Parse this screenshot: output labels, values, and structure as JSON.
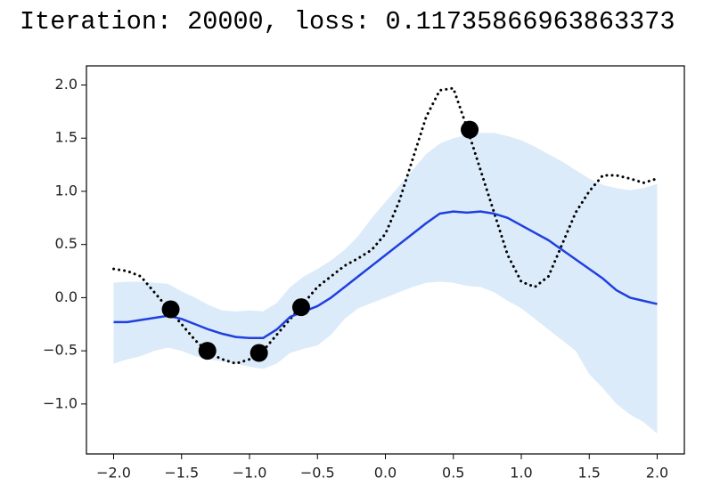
{
  "chart_data": {
    "type": "line",
    "title": "Iteration: 20000, loss: 0.11735866963863373",
    "x": [
      -2.0,
      -1.9,
      -1.8,
      -1.7,
      -1.6,
      -1.5,
      -1.4,
      -1.3,
      -1.2,
      -1.1,
      -1.0,
      -0.9,
      -0.8,
      -0.7,
      -0.6,
      -0.5,
      -0.4,
      -0.3,
      -0.2,
      -0.1,
      0.0,
      0.1,
      0.2,
      0.3,
      0.4,
      0.5,
      0.6,
      0.7,
      0.8,
      0.9,
      1.0,
      1.1,
      1.2,
      1.3,
      1.4,
      1.5,
      1.6,
      1.7,
      1.8,
      1.9,
      2.0
    ],
    "band": {
      "color": "#dcebf9",
      "upper": [
        0.14,
        0.15,
        0.15,
        0.14,
        0.13,
        0.06,
        0.0,
        -0.07,
        -0.12,
        -0.13,
        -0.12,
        -0.13,
        -0.05,
        0.1,
        0.2,
        0.27,
        0.35,
        0.45,
        0.58,
        0.75,
        0.9,
        1.05,
        1.2,
        1.35,
        1.45,
        1.5,
        1.53,
        1.55,
        1.55,
        1.52,
        1.48,
        1.42,
        1.35,
        1.28,
        1.2,
        1.12,
        1.06,
        1.03,
        1.01,
        1.03,
        1.07
      ],
      "lower": [
        -0.62,
        -0.58,
        -0.55,
        -0.5,
        -0.47,
        -0.5,
        -0.55,
        -0.58,
        -0.6,
        -0.62,
        -0.65,
        -0.67,
        -0.62,
        -0.52,
        -0.48,
        -0.45,
        -0.35,
        -0.2,
        -0.1,
        -0.05,
        0.0,
        0.05,
        0.1,
        0.14,
        0.15,
        0.14,
        0.11,
        0.1,
        0.05,
        -0.03,
        -0.1,
        -0.2,
        -0.3,
        -0.4,
        -0.5,
        -0.72,
        -0.85,
        -1.0,
        -1.1,
        -1.17,
        -1.28
      ]
    },
    "series": [
      {
        "color": "#000000",
        "style": "dotted",
        "values": [
          0.27,
          0.25,
          0.2,
          0.05,
          -0.1,
          -0.25,
          -0.4,
          -0.52,
          -0.58,
          -0.62,
          -0.58,
          -0.5,
          -0.35,
          -0.2,
          -0.05,
          0.1,
          0.2,
          0.3,
          0.37,
          0.45,
          0.6,
          0.9,
          1.3,
          1.7,
          1.95,
          1.97,
          1.6,
          1.2,
          0.8,
          0.4,
          0.15,
          0.1,
          0.2,
          0.5,
          0.8,
          1.0,
          1.15,
          1.15,
          1.12,
          1.08,
          1.12
        ]
      },
      {
        "color": "#1f3fe0",
        "style": "solid",
        "values": [
          -0.23,
          -0.23,
          -0.21,
          -0.19,
          -0.17,
          -0.2,
          -0.25,
          -0.3,
          -0.34,
          -0.37,
          -0.38,
          -0.38,
          -0.3,
          -0.18,
          -0.13,
          -0.08,
          0.0,
          0.1,
          0.2,
          0.3,
          0.4,
          0.5,
          0.6,
          0.7,
          0.79,
          0.81,
          0.8,
          0.81,
          0.79,
          0.75,
          0.68,
          0.61,
          0.54,
          0.45,
          0.36,
          0.27,
          0.18,
          0.07,
          0.0,
          -0.03,
          -0.06
        ]
      }
    ],
    "points": {
      "color": "#000000",
      "x": [
        -1.58,
        -1.31,
        -0.93,
        -0.62,
        0.62
      ],
      "y": [
        -0.11,
        -0.5,
        -0.52,
        -0.09,
        1.58
      ]
    },
    "xlim": [
      -2.2,
      2.2
    ],
    "ylim": [
      -1.47,
      2.18
    ],
    "xticks": [
      {
        "value": -2.0,
        "label": "−2.0"
      },
      {
        "value": -1.5,
        "label": "−1.5"
      },
      {
        "value": -1.0,
        "label": "−1.0"
      },
      {
        "value": -0.5,
        "label": "−0.5"
      },
      {
        "value": 0.0,
        "label": "0.0"
      },
      {
        "value": 0.5,
        "label": "0.5"
      },
      {
        "value": 1.0,
        "label": "1.0"
      },
      {
        "value": 1.5,
        "label": "1.5"
      },
      {
        "value": 2.0,
        "label": "2.0"
      }
    ],
    "yticks": [
      {
        "value": -1.0,
        "label": "−1.0"
      },
      {
        "value": -0.5,
        "label": "−0.5"
      },
      {
        "value": 0.0,
        "label": "0.0"
      },
      {
        "value": 0.5,
        "label": "0.5"
      },
      {
        "value": 1.0,
        "label": "1.0"
      },
      {
        "value": 1.5,
        "label": "1.5"
      },
      {
        "value": 2.0,
        "label": "2.0"
      }
    ],
    "grid": false
  }
}
